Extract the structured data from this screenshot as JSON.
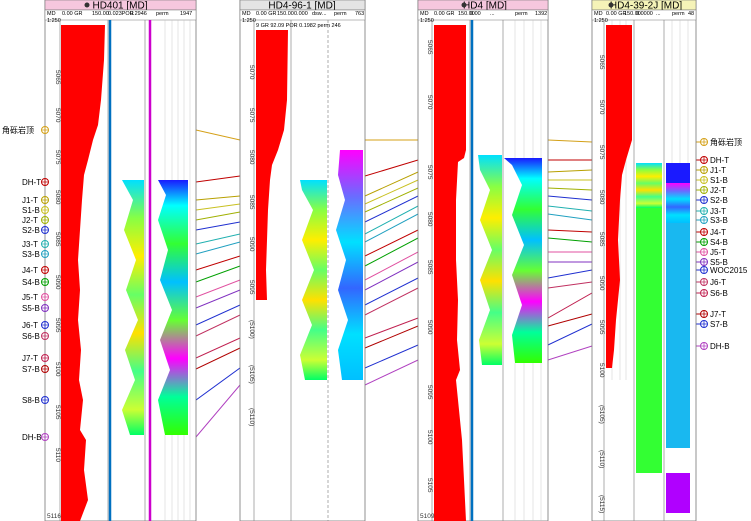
{
  "wells": [
    {
      "name": "HD401 [MD]",
      "header_bg": "#f6c7de",
      "header_cells": [
        "MD",
        "0.00 GR",
        "150.00",
        "0.023POR",
        "0.2946",
        "perm",
        "1947"
      ],
      "depth_top": "1:250",
      "depths": [
        "5065",
        "5070",
        "5075",
        "5080",
        "5085",
        "5090",
        "5095",
        "5100",
        "5105",
        "5110"
      ],
      "depth_bottom": "5116"
    },
    {
      "name": "HD4-96-1 [MD]",
      "header_bg": "#e4e4e4",
      "header_cells": [
        "MD",
        "0.00 GR",
        "150.00",
        "0.000",
        "dsw",
        "...",
        "perm",
        "763"
      ],
      "depth_top": "1:250",
      "extra_header": "9 GR 92.09 POR 0.1982 perm 246",
      "depths": [
        "5070",
        "5075",
        "5080",
        "5085",
        "5090",
        "5095",
        "(5100)",
        "(5105)",
        "(5110)"
      ],
      "depth_bottom": ""
    },
    {
      "name": "HD4 [MD]",
      "header_bg": "#f6c7de",
      "header_cells": [
        "MD",
        "0.00 GR",
        "150.00",
        "0.00",
        "...",
        "perm",
        "1392"
      ],
      "depth_top": "1:250",
      "depths": [
        "5065",
        "5070",
        "5075",
        "5080",
        "5085",
        "5090",
        "5095",
        "5100",
        "5105"
      ],
      "depth_bottom": "5109"
    },
    {
      "name": "HD4-39-2J [MD]",
      "header_bg": "#f5f3b8",
      "header_cells": [
        "MD",
        "0.00 GR",
        "150.00",
        "0.0000",
        "...",
        "perm",
        "48"
      ],
      "depth_top": "1:250",
      "depths": [
        "5065",
        "5070",
        "5075",
        "5080",
        "5085",
        "5090",
        "5095",
        "5100",
        "(5105)",
        "(5110)",
        "(5115)"
      ],
      "depth_bottom": ""
    }
  ],
  "markers_left": [
    "角砾岩顶",
    "DH-T",
    "J1-T",
    "S1-B",
    "J2-T",
    "S2-B",
    "J3-T",
    "S3-B",
    "J4-T",
    "S4-B",
    "J5-T",
    "S5-B",
    "J6-T",
    "S6-B",
    "J7-T",
    "S7-B",
    "S8-B",
    "DH-B"
  ],
  "markers_right": [
    "角砾岩顶",
    "DH-T",
    "J1-T",
    "S1-B",
    "J2-T",
    "S2-B",
    "J3-T",
    "S3-B",
    "J4-T",
    "S4-B",
    "J5-T",
    "S5-B",
    "WOC2015",
    "J6-T",
    "S6-B",
    "J7-T",
    "S7-B",
    "DH-B"
  ],
  "colors": {
    "gr_fill": "#ff0000",
    "por_line": "#0070c0",
    "perm_line": "#cc00cc",
    "brecchia": "#d4a017",
    "J": "#c00000",
    "S": "#1f2fd0",
    "T": "#00b050",
    "DH": "#a020a0"
  }
}
